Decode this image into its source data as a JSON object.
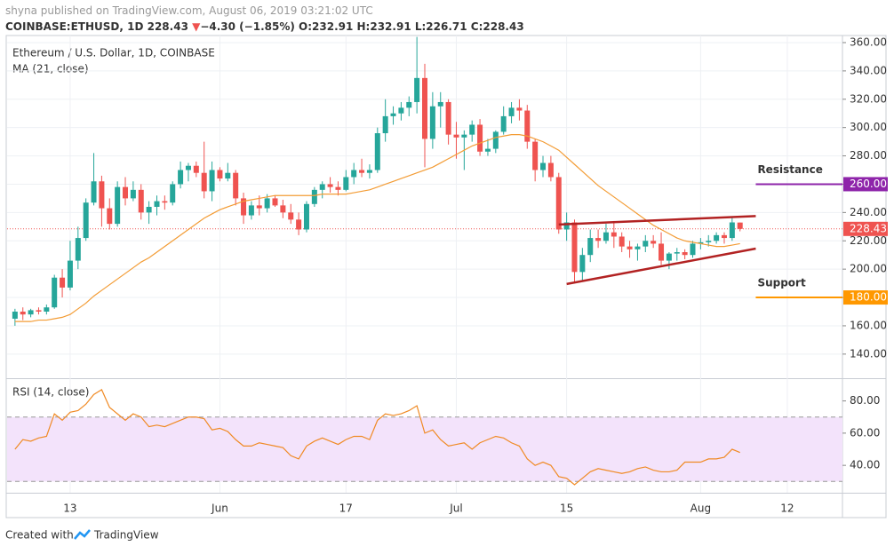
{
  "header": {
    "publisher": "shyna published on TradingView.com, August 06, 2019 03:21:02 UTC",
    "symbol": "COINBASE:ETHUSD, 1D",
    "last": "228.43",
    "arrow": "▼",
    "change": "−4.30 (−1.85%)",
    "ohlc": "O:232.91 H:232.91 L:226.71 C:228.43"
  },
  "footer": {
    "created": "Created with",
    "brand": "TradingView"
  },
  "chart_data": [
    {
      "type": "candlestick",
      "title": "Ethereum / U.S. Dollar, 1D, COINBASE",
      "up_color": "#26a69a",
      "down_color": "#ef5350",
      "x": [
        "2019-05-06",
        "2019-05-07",
        "2019-05-08",
        "2019-05-09",
        "2019-05-10",
        "2019-05-11",
        "2019-05-12",
        "2019-05-13",
        "2019-05-14",
        "2019-05-15",
        "2019-05-16",
        "2019-05-17",
        "2019-05-18",
        "2019-05-19",
        "2019-05-20",
        "2019-05-21",
        "2019-05-22",
        "2019-05-23",
        "2019-05-24",
        "2019-05-25",
        "2019-05-26",
        "2019-05-27",
        "2019-05-28",
        "2019-05-29",
        "2019-05-30",
        "2019-05-31",
        "2019-06-01",
        "2019-06-02",
        "2019-06-03",
        "2019-06-04",
        "2019-06-05",
        "2019-06-06",
        "2019-06-07",
        "2019-06-08",
        "2019-06-09",
        "2019-06-10",
        "2019-06-11",
        "2019-06-12",
        "2019-06-13",
        "2019-06-14",
        "2019-06-15",
        "2019-06-16",
        "2019-06-17",
        "2019-06-18",
        "2019-06-19",
        "2019-06-20",
        "2019-06-21",
        "2019-06-22",
        "2019-06-23",
        "2019-06-24",
        "2019-06-25",
        "2019-06-26",
        "2019-06-27",
        "2019-06-28",
        "2019-06-29",
        "2019-06-30",
        "2019-07-01",
        "2019-07-02",
        "2019-07-03",
        "2019-07-04",
        "2019-07-05",
        "2019-07-06",
        "2019-07-07",
        "2019-07-08",
        "2019-07-09",
        "2019-07-10",
        "2019-07-11",
        "2019-07-12",
        "2019-07-13",
        "2019-07-14",
        "2019-07-15",
        "2019-07-16",
        "2019-07-17",
        "2019-07-18",
        "2019-07-19",
        "2019-07-20",
        "2019-07-21",
        "2019-07-22",
        "2019-07-23",
        "2019-07-24",
        "2019-07-25",
        "2019-07-26",
        "2019-07-27",
        "2019-07-28",
        "2019-07-29",
        "2019-07-30",
        "2019-07-31",
        "2019-08-01",
        "2019-08-02",
        "2019-08-03",
        "2019-08-04",
        "2019-08-05",
        "2019-08-06"
      ],
      "open": [
        165,
        170,
        168,
        171,
        170,
        173,
        194,
        187,
        206,
        222,
        247,
        262,
        243,
        232,
        258,
        250,
        256,
        240,
        244,
        248,
        247,
        260,
        270,
        273,
        268,
        255,
        270,
        264,
        268,
        250,
        238,
        245,
        243,
        250,
        245,
        240,
        235,
        228,
        246,
        256,
        260,
        258,
        256,
        265,
        270,
        268,
        270,
        296,
        308,
        310,
        314,
        318,
        335,
        292,
        315,
        318,
        295,
        293,
        295,
        302,
        283,
        285,
        297,
        308,
        314,
        312,
        290,
        270,
        275,
        265,
        228,
        233,
        198,
        210,
        222,
        220,
        226,
        223,
        216,
        214,
        216,
        220,
        218,
        206,
        211,
        212,
        210,
        218,
        219,
        220,
        224,
        222,
        232.91
      ],
      "high": [
        172,
        173,
        172,
        173,
        175,
        196,
        200,
        220,
        230,
        250,
        282,
        266,
        250,
        262,
        265,
        262,
        260,
        248,
        252,
        252,
        262,
        276,
        275,
        276,
        290,
        276,
        272,
        275,
        270,
        254,
        248,
        252,
        253,
        252,
        249,
        246,
        240,
        248,
        258,
        262,
        265,
        262,
        270,
        275,
        278,
        274,
        300,
        320,
        315,
        318,
        322,
        364,
        345,
        325,
        325,
        320,
        304,
        298,
        305,
        306,
        292,
        298,
        315,
        318,
        320,
        316,
        292,
        280,
        280,
        268,
        240,
        235,
        215,
        228,
        228,
        232,
        234,
        226,
        220,
        218,
        224,
        224,
        226,
        212,
        215,
        214,
        220,
        222,
        224,
        226,
        226,
        237,
        232.91
      ],
      "low": [
        160,
        164,
        166,
        168,
        168,
        172,
        180,
        185,
        200,
        220,
        245,
        230,
        228,
        230,
        245,
        248,
        235,
        232,
        238,
        242,
        245,
        257,
        262,
        265,
        250,
        248,
        262,
        262,
        245,
        232,
        235,
        238,
        240,
        244,
        236,
        232,
        224,
        226,
        244,
        250,
        254,
        252,
        255,
        260,
        265,
        264,
        268,
        290,
        302,
        305,
        308,
        310,
        272,
        285,
        300,
        288,
        278,
        270,
        290,
        280,
        280,
        282,
        295,
        303,
        305,
        285,
        262,
        265,
        262,
        225,
        220,
        190,
        192,
        205,
        215,
        218,
        215,
        212,
        208,
        206,
        212,
        215,
        203,
        200,
        206,
        207,
        208,
        214,
        216,
        218,
        218,
        220,
        226.71
      ],
      "close": [
        170,
        168,
        171,
        170,
        173,
        194,
        187,
        206,
        222,
        247,
        262,
        243,
        232,
        258,
        250,
        256,
        240,
        244,
        248,
        247,
        260,
        270,
        273,
        268,
        255,
        270,
        264,
        268,
        250,
        238,
        245,
        243,
        250,
        245,
        240,
        235,
        228,
        246,
        256,
        260,
        258,
        256,
        265,
        270,
        268,
        270,
        296,
        308,
        310,
        314,
        318,
        335,
        292,
        315,
        318,
        295,
        293,
        295,
        302,
        283,
        285,
        297,
        308,
        314,
        312,
        290,
        270,
        275,
        265,
        228,
        233,
        198,
        210,
        222,
        220,
        226,
        223,
        216,
        214,
        216,
        220,
        218,
        206,
        211,
        212,
        210,
        218,
        219,
        220,
        224,
        222,
        233,
        228.43
      ],
      "ma": {
        "name": "MA (21, close)",
        "color": "#f39c35",
        "values": [
          163,
          163,
          163,
          164,
          164,
          165,
          166,
          168,
          172,
          176,
          181,
          185,
          189,
          193,
          197,
          201,
          205,
          208,
          212,
          216,
          220,
          224,
          228,
          232,
          236,
          239,
          242,
          244,
          246,
          248,
          249,
          250,
          251,
          252,
          252,
          252,
          252,
          252,
          252,
          253,
          253,
          253,
          253,
          254,
          255,
          256,
          258,
          260,
          262,
          264,
          266,
          268,
          270,
          272,
          275,
          278,
          281,
          284,
          287,
          289,
          291,
          293,
          294,
          295,
          295,
          294,
          292,
          290,
          287,
          284,
          279,
          274,
          269,
          264,
          259,
          255,
          251,
          247,
          243,
          239,
          235,
          231,
          228,
          225,
          222,
          220,
          219,
          218,
          217,
          216,
          216,
          217,
          218
        ]
      },
      "xlim": [
        "2019-05-05",
        "2019-08-19"
      ],
      "xticks": [
        {
          "value": "2019-05-13",
          "label": "13"
        },
        {
          "value": "2019-06-01",
          "label": "Jun"
        },
        {
          "value": "2019-06-17",
          "label": "17"
        },
        {
          "value": "2019-07-01",
          "label": "Jul"
        },
        {
          "value": "2019-07-15",
          "label": "15"
        },
        {
          "value": "2019-08-01",
          "label": "Aug"
        },
        {
          "value": "2019-08-12",
          "label": "12"
        }
      ],
      "ylim": [
        123.6,
        365
      ],
      "yticks": [
        {
          "value": 140,
          "label": "140.00"
        },
        {
          "value": 160,
          "label": "160.00"
        },
        {
          "value": 180,
          "label": "180.00"
        },
        {
          "value": 200,
          "label": "200.00"
        },
        {
          "value": 220,
          "label": "220.00"
        },
        {
          "value": 240,
          "label": "240.00"
        },
        {
          "value": 260,
          "label": "260.00"
        },
        {
          "value": 280,
          "label": "280.00"
        },
        {
          "value": 300,
          "label": "300.00"
        },
        {
          "value": 320,
          "label": "320.00"
        },
        {
          "value": 340,
          "label": "340.00"
        },
        {
          "value": 360,
          "label": "360.00"
        }
      ],
      "grid": true,
      "last_price": {
        "value": 228.43,
        "label": "228.43",
        "color": "#ef5350"
      },
      "levels": [
        {
          "text": "Resistance",
          "value": 260,
          "value_label": "260.00",
          "from": "2019-08-08",
          "color": "#8e24aa",
          "text_color": "#e0504a"
        },
        {
          "text": "Support",
          "value": 180,
          "value_label": "180.00",
          "from": "2019-08-08",
          "color": "#ff9800",
          "text_color": "#8b0a2a"
        }
      ],
      "trendlines": [
        {
          "x": [
            "2019-07-14",
            "2019-08-08"
          ],
          "y": [
            231.5,
            237.5
          ],
          "color": "#b22222"
        },
        {
          "x": [
            "2019-07-15",
            "2019-08-08"
          ],
          "y": [
            189.5,
            214.5
          ],
          "color": "#b22222"
        }
      ]
    },
    {
      "type": "line",
      "series": [
        {
          "name": "RSI (14, close)",
          "color": "#f08a24",
          "values": [
            50,
            56,
            55,
            57,
            58,
            72,
            68,
            73,
            74,
            78,
            84,
            87,
            76,
            72,
            68,
            72,
            70,
            64,
            65,
            64,
            66,
            68,
            70,
            70,
            69,
            62,
            63,
            61,
            56,
            52,
            52,
            54,
            53,
            52,
            51,
            46,
            44,
            52,
            55,
            57,
            55,
            53,
            56,
            58,
            58,
            56,
            68,
            72,
            71,
            72,
            74,
            77,
            60,
            62,
            56,
            52,
            53,
            54,
            50,
            54,
            56,
            58,
            57,
            54,
            52,
            44,
            40,
            42,
            40,
            33,
            32,
            28,
            32,
            36,
            38,
            37,
            36,
            35,
            36,
            38,
            39,
            37,
            36,
            36,
            37,
            42,
            42,
            42,
            44,
            44,
            45,
            50,
            48
          ]
        }
      ],
      "ylim": [
        23,
        93
      ],
      "yticks": [
        {
          "value": 40,
          "label": "40.00"
        },
        {
          "value": 60,
          "label": "60.00"
        },
        {
          "value": 80,
          "label": "80.00"
        }
      ],
      "band": [
        30,
        70
      ],
      "band_color": "#f3e3fb"
    }
  ]
}
